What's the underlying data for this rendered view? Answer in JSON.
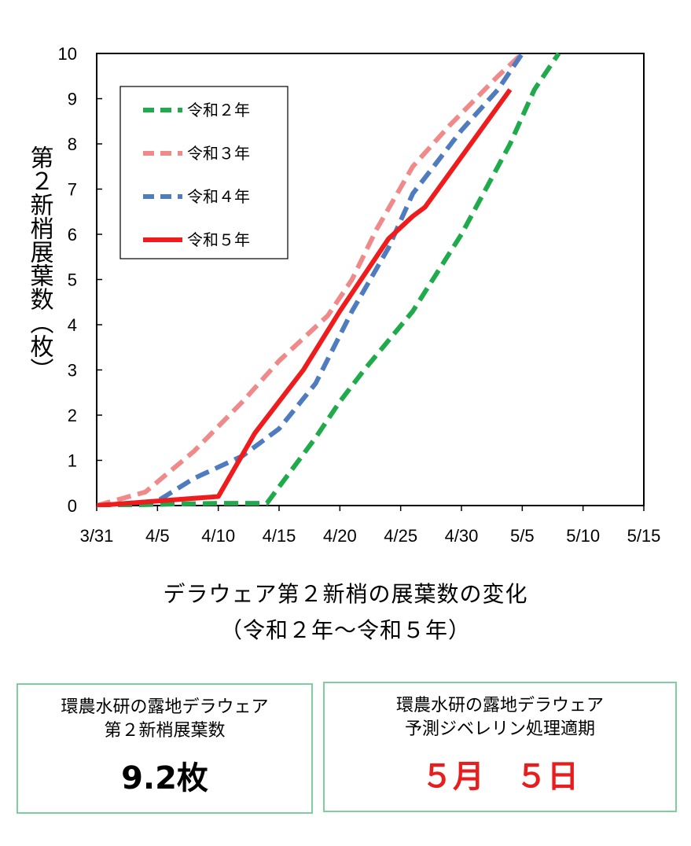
{
  "chart_data": {
    "type": "line",
    "ylabel": "第２新梢展葉数（枚）",
    "ylim": [
      0,
      10
    ],
    "xlim": [
      "3/31",
      "5/15"
    ],
    "x_ticks": [
      "3/31",
      "4/5",
      "4/10",
      "4/15",
      "4/20",
      "4/25",
      "4/30",
      "5/5",
      "5/10",
      "5/15"
    ],
    "y_ticks": [
      "0",
      "1",
      "2",
      "3",
      "4",
      "5",
      "6",
      "7",
      "8",
      "9",
      "10"
    ],
    "grid": false,
    "legend_position": "top-left",
    "series": [
      {
        "name": "令和２年",
        "color": "#1faa4b",
        "style": "dashed",
        "points": [
          [
            "3/31",
            0
          ],
          [
            "4/10",
            0.05
          ],
          [
            "4/14",
            0.05
          ],
          [
            "4/18",
            1.5
          ],
          [
            "4/20",
            2.3
          ],
          [
            "4/22",
            3.0
          ],
          [
            "4/26",
            4.3
          ],
          [
            "4/30",
            6.0
          ],
          [
            "5/4",
            8.0
          ],
          [
            "5/6",
            9.2
          ],
          [
            "5/8",
            10.0
          ]
        ]
      },
      {
        "name": "令和３年",
        "color": "#f08a8a",
        "style": "dashed",
        "points": [
          [
            "3/31",
            0
          ],
          [
            "4/4",
            0.3
          ],
          [
            "4/8",
            1.2
          ],
          [
            "4/12",
            2.3
          ],
          [
            "4/15",
            3.2
          ],
          [
            "4/17",
            3.7
          ],
          [
            "4/19",
            4.2
          ],
          [
            "4/21",
            5.0
          ],
          [
            "4/23",
            6.1
          ],
          [
            "4/26",
            7.5
          ],
          [
            "4/29",
            8.4
          ],
          [
            "5/3",
            9.5
          ],
          [
            "5/5",
            10.0
          ]
        ]
      },
      {
        "name": "令和４年",
        "color": "#4f7bbf",
        "style": "dashed",
        "points": [
          [
            "3/31",
            0
          ],
          [
            "4/5",
            0.1
          ],
          [
            "4/8",
            0.6
          ],
          [
            "4/12",
            1.1
          ],
          [
            "4/15",
            1.7
          ],
          [
            "4/18",
            2.7
          ],
          [
            "4/21",
            4.3
          ],
          [
            "4/24",
            5.7
          ],
          [
            "4/26",
            6.9
          ],
          [
            "4/28",
            7.6
          ],
          [
            "4/30",
            8.3
          ],
          [
            "5/3",
            9.2
          ],
          [
            "5/5",
            10.0
          ]
        ]
      },
      {
        "name": "令和５年",
        "color": "#ee1c1c",
        "style": "solid",
        "points": [
          [
            "3/31",
            0
          ],
          [
            "4/10",
            0.2
          ],
          [
            "4/13",
            1.6
          ],
          [
            "4/17",
            3.0
          ],
          [
            "4/20",
            4.3
          ],
          [
            "4/24",
            5.9
          ],
          [
            "4/26",
            6.4
          ],
          [
            "4/27",
            6.6
          ],
          [
            "5/4",
            9.2
          ]
        ]
      }
    ]
  },
  "caption": {
    "line1": "デラウェア第２新梢の展葉数の変化",
    "line2": "（令和２年～令和５年）"
  },
  "box_left": {
    "line1": "環農水研の露地デラウェア",
    "line2": "第２新梢展葉数",
    "value": "9.2枚",
    "value_color": "#000000"
  },
  "box_right": {
    "line1": "環農水研の露地デラウェア",
    "line2": "予測ジベレリン処理適期",
    "value": "５月　５日",
    "value_color": "#e81e1e"
  }
}
